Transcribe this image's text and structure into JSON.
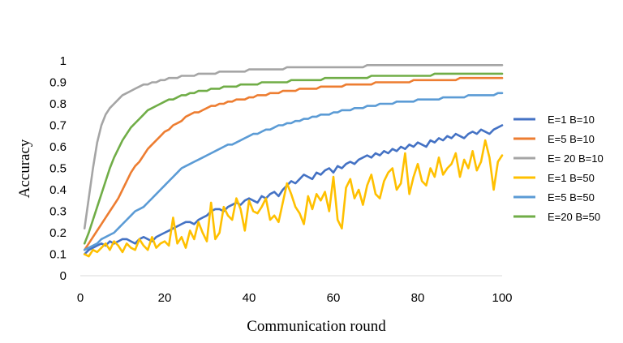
{
  "chart_data": {
    "type": "line",
    "xlabel": "Communication round",
    "ylabel": "Accuracy",
    "xlim": [
      0,
      100
    ],
    "ylim": [
      0,
      1
    ],
    "xticks": [
      0,
      20,
      40,
      60,
      80,
      100
    ],
    "yticks": [
      0,
      0.1,
      0.2,
      0.3,
      0.4,
      0.5,
      0.6,
      0.7,
      0.8,
      0.9,
      1
    ],
    "grid": false,
    "legend_position": "right",
    "x": [
      1,
      2,
      3,
      4,
      5,
      6,
      7,
      8,
      9,
      10,
      11,
      12,
      13,
      14,
      15,
      16,
      17,
      18,
      19,
      20,
      21,
      22,
      23,
      24,
      25,
      26,
      27,
      28,
      29,
      30,
      31,
      32,
      33,
      34,
      35,
      36,
      37,
      38,
      39,
      40,
      41,
      42,
      43,
      44,
      45,
      46,
      47,
      48,
      49,
      50,
      51,
      52,
      53,
      54,
      55,
      56,
      57,
      58,
      59,
      60,
      61,
      62,
      63,
      64,
      65,
      66,
      67,
      68,
      69,
      70,
      71,
      72,
      73,
      74,
      75,
      76,
      77,
      78,
      79,
      80,
      81,
      82,
      83,
      84,
      85,
      86,
      87,
      88,
      89,
      90,
      91,
      92,
      93,
      94,
      95,
      96,
      97,
      98,
      99,
      100
    ],
    "series": [
      {
        "name": "E=1 B=10",
        "color": "#4472C4",
        "values": [
          0.1,
          0.12,
          0.13,
          0.14,
          0.15,
          0.14,
          0.16,
          0.15,
          0.16,
          0.17,
          0.17,
          0.16,
          0.15,
          0.17,
          0.18,
          0.17,
          0.16,
          0.18,
          0.19,
          0.2,
          0.21,
          0.22,
          0.23,
          0.24,
          0.25,
          0.25,
          0.24,
          0.26,
          0.27,
          0.28,
          0.3,
          0.31,
          0.31,
          0.3,
          0.32,
          0.33,
          0.34,
          0.33,
          0.35,
          0.36,
          0.35,
          0.34,
          0.37,
          0.36,
          0.38,
          0.39,
          0.37,
          0.4,
          0.42,
          0.44,
          0.43,
          0.45,
          0.47,
          0.46,
          0.45,
          0.48,
          0.47,
          0.49,
          0.5,
          0.48,
          0.51,
          0.5,
          0.52,
          0.53,
          0.52,
          0.54,
          0.55,
          0.56,
          0.55,
          0.57,
          0.56,
          0.58,
          0.57,
          0.59,
          0.58,
          0.6,
          0.59,
          0.61,
          0.6,
          0.62,
          0.61,
          0.6,
          0.63,
          0.62,
          0.64,
          0.63,
          0.65,
          0.64,
          0.66,
          0.65,
          0.64,
          0.66,
          0.67,
          0.66,
          0.68,
          0.67,
          0.66,
          0.68,
          0.69,
          0.7
        ]
      },
      {
        "name": "E=5 B=10",
        "color": "#ED7D31",
        "values": [
          0.12,
          0.15,
          0.18,
          0.21,
          0.24,
          0.27,
          0.3,
          0.33,
          0.36,
          0.4,
          0.44,
          0.48,
          0.51,
          0.53,
          0.56,
          0.59,
          0.61,
          0.63,
          0.65,
          0.67,
          0.68,
          0.7,
          0.71,
          0.72,
          0.74,
          0.75,
          0.76,
          0.76,
          0.77,
          0.78,
          0.79,
          0.79,
          0.8,
          0.8,
          0.81,
          0.81,
          0.82,
          0.82,
          0.82,
          0.83,
          0.83,
          0.84,
          0.84,
          0.84,
          0.85,
          0.85,
          0.85,
          0.86,
          0.86,
          0.86,
          0.86,
          0.87,
          0.87,
          0.87,
          0.87,
          0.87,
          0.88,
          0.88,
          0.88,
          0.88,
          0.88,
          0.88,
          0.89,
          0.89,
          0.89,
          0.89,
          0.89,
          0.89,
          0.89,
          0.9,
          0.9,
          0.9,
          0.9,
          0.9,
          0.9,
          0.9,
          0.9,
          0.9,
          0.91,
          0.91,
          0.91,
          0.91,
          0.91,
          0.91,
          0.91,
          0.91,
          0.91,
          0.91,
          0.91,
          0.92,
          0.92,
          0.92,
          0.92,
          0.92,
          0.92,
          0.92,
          0.92,
          0.92,
          0.92,
          0.92
        ]
      },
      {
        "name": "E= 20 B=10",
        "color": "#A5A5A5",
        "values": [
          0.22,
          0.36,
          0.5,
          0.62,
          0.7,
          0.75,
          0.78,
          0.8,
          0.82,
          0.84,
          0.85,
          0.86,
          0.87,
          0.88,
          0.89,
          0.89,
          0.9,
          0.9,
          0.91,
          0.91,
          0.92,
          0.92,
          0.92,
          0.93,
          0.93,
          0.93,
          0.93,
          0.94,
          0.94,
          0.94,
          0.94,
          0.94,
          0.95,
          0.95,
          0.95,
          0.95,
          0.95,
          0.95,
          0.95,
          0.96,
          0.96,
          0.96,
          0.96,
          0.96,
          0.96,
          0.96,
          0.96,
          0.96,
          0.97,
          0.97,
          0.97,
          0.97,
          0.97,
          0.97,
          0.97,
          0.97,
          0.97,
          0.97,
          0.97,
          0.97,
          0.97,
          0.97,
          0.97,
          0.97,
          0.97,
          0.97,
          0.97,
          0.98,
          0.98,
          0.98,
          0.98,
          0.98,
          0.98,
          0.98,
          0.98,
          0.98,
          0.98,
          0.98,
          0.98,
          0.98,
          0.98,
          0.98,
          0.98,
          0.98,
          0.98,
          0.98,
          0.98,
          0.98,
          0.98,
          0.98,
          0.98,
          0.98,
          0.98,
          0.98,
          0.98,
          0.98,
          0.98,
          0.98,
          0.98,
          0.98
        ]
      },
      {
        "name": "E=1 B=50",
        "color": "#FFC000",
        "values": [
          0.1,
          0.09,
          0.12,
          0.11,
          0.13,
          0.15,
          0.12,
          0.16,
          0.14,
          0.11,
          0.15,
          0.13,
          0.12,
          0.17,
          0.14,
          0.12,
          0.18,
          0.13,
          0.15,
          0.16,
          0.14,
          0.27,
          0.15,
          0.18,
          0.13,
          0.21,
          0.17,
          0.25,
          0.2,
          0.16,
          0.34,
          0.17,
          0.2,
          0.32,
          0.28,
          0.26,
          0.36,
          0.31,
          0.21,
          0.35,
          0.3,
          0.29,
          0.32,
          0.36,
          0.26,
          0.28,
          0.25,
          0.34,
          0.43,
          0.38,
          0.32,
          0.29,
          0.24,
          0.37,
          0.31,
          0.38,
          0.35,
          0.39,
          0.3,
          0.46,
          0.26,
          0.22,
          0.41,
          0.45,
          0.36,
          0.4,
          0.33,
          0.42,
          0.47,
          0.38,
          0.36,
          0.44,
          0.48,
          0.5,
          0.4,
          0.43,
          0.57,
          0.38,
          0.46,
          0.52,
          0.44,
          0.42,
          0.5,
          0.46,
          0.55,
          0.47,
          0.5,
          0.52,
          0.57,
          0.46,
          0.54,
          0.5,
          0.58,
          0.49,
          0.53,
          0.63,
          0.55,
          0.4,
          0.53,
          0.56
        ]
      },
      {
        "name": "E=5 B=50",
        "color": "#5B9BD5",
        "values": [
          0.12,
          0.13,
          0.14,
          0.15,
          0.17,
          0.18,
          0.19,
          0.2,
          0.22,
          0.24,
          0.26,
          0.28,
          0.3,
          0.31,
          0.32,
          0.34,
          0.36,
          0.38,
          0.4,
          0.42,
          0.44,
          0.46,
          0.48,
          0.5,
          0.51,
          0.52,
          0.53,
          0.54,
          0.55,
          0.56,
          0.57,
          0.58,
          0.59,
          0.6,
          0.61,
          0.61,
          0.62,
          0.63,
          0.64,
          0.65,
          0.66,
          0.66,
          0.67,
          0.68,
          0.68,
          0.69,
          0.7,
          0.7,
          0.71,
          0.71,
          0.72,
          0.72,
          0.73,
          0.73,
          0.74,
          0.74,
          0.75,
          0.75,
          0.75,
          0.76,
          0.76,
          0.77,
          0.77,
          0.77,
          0.78,
          0.78,
          0.78,
          0.79,
          0.79,
          0.79,
          0.8,
          0.8,
          0.8,
          0.8,
          0.81,
          0.81,
          0.81,
          0.81,
          0.81,
          0.82,
          0.82,
          0.82,
          0.82,
          0.82,
          0.82,
          0.83,
          0.83,
          0.83,
          0.83,
          0.83,
          0.83,
          0.84,
          0.84,
          0.84,
          0.84,
          0.84,
          0.84,
          0.84,
          0.85,
          0.85
        ]
      },
      {
        "name": "E=20 B=50",
        "color": "#70AD47",
        "values": [
          0.15,
          0.2,
          0.26,
          0.32,
          0.38,
          0.44,
          0.5,
          0.55,
          0.59,
          0.63,
          0.66,
          0.69,
          0.71,
          0.73,
          0.75,
          0.77,
          0.78,
          0.79,
          0.8,
          0.81,
          0.82,
          0.82,
          0.83,
          0.84,
          0.84,
          0.85,
          0.85,
          0.86,
          0.86,
          0.86,
          0.87,
          0.87,
          0.87,
          0.88,
          0.88,
          0.88,
          0.88,
          0.89,
          0.89,
          0.89,
          0.89,
          0.89,
          0.9,
          0.9,
          0.9,
          0.9,
          0.9,
          0.9,
          0.9,
          0.91,
          0.91,
          0.91,
          0.91,
          0.91,
          0.91,
          0.91,
          0.91,
          0.92,
          0.92,
          0.92,
          0.92,
          0.92,
          0.92,
          0.92,
          0.92,
          0.92,
          0.92,
          0.92,
          0.93,
          0.93,
          0.93,
          0.93,
          0.93,
          0.93,
          0.93,
          0.93,
          0.93,
          0.93,
          0.93,
          0.93,
          0.93,
          0.93,
          0.93,
          0.94,
          0.94,
          0.94,
          0.94,
          0.94,
          0.94,
          0.94,
          0.94,
          0.94,
          0.94,
          0.94,
          0.94,
          0.94,
          0.94,
          0.94,
          0.94,
          0.94
        ]
      }
    ]
  }
}
